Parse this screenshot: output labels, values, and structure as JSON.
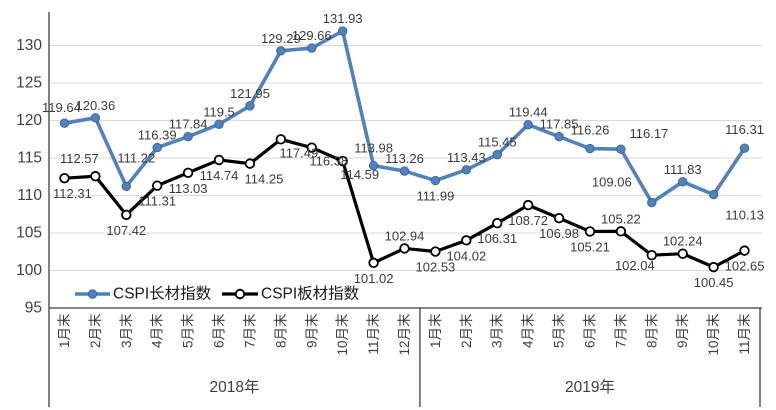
{
  "chart_data": {
    "type": "line",
    "title": "",
    "x_groups": [
      {
        "year": "2018年",
        "months": [
          "1月末",
          "2月末",
          "3月末",
          "4月末",
          "5月末",
          "6月末",
          "7月末",
          "8月末",
          "9月末",
          "10月末",
          "11月末",
          "12月末"
        ]
      },
      {
        "year": "2019年",
        "months": [
          "1月末",
          "2月末",
          "3月末",
          "4月末",
          "5月末",
          "6月末",
          "7月末",
          "8月末",
          "9月末",
          "10月末",
          "11月末"
        ]
      }
    ],
    "y_axis": {
      "ticks": [
        "95",
        "100",
        "105",
        "110",
        "115",
        "120",
        "125",
        "130"
      ],
      "min": 95,
      "max": 135,
      "grid": true
    },
    "legend": {
      "position": "bottom-left-inside",
      "items": [
        {
          "label": "CSPI长材指数",
          "marker": "filled-circle",
          "color": "#4F81BD"
        },
        {
          "label": "CSPI板材指数",
          "marker": "open-circle",
          "color": "#000000"
        }
      ]
    },
    "series": [
      {
        "name": "CSPI长材指数",
        "color": "#5282BC",
        "marker": "filled-circle",
        "values": [
          119.64,
          120.36,
          111.22,
          116.39,
          117.84,
          119.5,
          121.95,
          129.29,
          129.66,
          131.93,
          113.98,
          113.26,
          111.99,
          113.43,
          115.45,
          119.44,
          117.85,
          116.26,
          116.17,
          109.06,
          111.83,
          110.13,
          116.31
        ],
        "labels": [
          "119.64",
          "120.36",
          "111.22",
          "116.39",
          "117.84",
          "119.5",
          "121.95",
          "129.29",
          "129.66",
          "131.93",
          "113.98",
          "113.26",
          "111.99",
          "113.43",
          "115.45",
          "119.44",
          "117.85",
          "116.26",
          "116.17",
          "109.06",
          "111.83",
          "110.13",
          "116.31"
        ],
        "label_default_side": "above",
        "label_side_overrides": {
          "12": "below",
          "21": "below"
        },
        "label_offset_overrides": {
          "0": [
            -3,
            -3
          ],
          "2": [
            10,
            -16
          ],
          "10": [
            0,
            -5
          ],
          "17": [
            0,
            -6
          ],
          "18": [
            28,
            -3
          ],
          "19": [
            -40,
            -8
          ],
          "21": [
            31,
            5
          ],
          "22": [
            0,
            -6
          ]
        }
      },
      {
        "name": "CSPI板材指数",
        "color": "#000000",
        "marker": "open-circle",
        "values": [
          112.31,
          112.57,
          107.42,
          111.31,
          113.03,
          114.74,
          114.25,
          117.49,
          116.38,
          114.59,
          101.02,
          102.94,
          102.53,
          104.02,
          106.31,
          108.72,
          106.98,
          105.21,
          105.22,
          102.04,
          102.24,
          100.45,
          102.65
        ],
        "labels": [
          "112.31",
          "112.57",
          "107.42",
          "111.31",
          "113.03",
          "114.74",
          "114.25",
          "117.49",
          "116.38",
          "114.59",
          "101.02",
          "102.94",
          "102.53",
          "104.02",
          "106.31",
          "108.72",
          "106.98",
          "105.21",
          "105.22",
          "102.04",
          "102.24",
          "100.45",
          "102.65"
        ],
        "label_default_side": "below",
        "label_side_overrides": {
          "1": "above",
          "11": "above",
          "18": "above",
          "20": "above"
        },
        "label_offset_overrides": {
          "0": [
            8,
            0
          ],
          "1": [
            -16,
            -5
          ],
          "6": [
            14,
            0
          ],
          "7": [
            18,
            -2
          ],
          "8": [
            17,
            -2
          ],
          "9": [
            17,
            -2
          ],
          "19": [
            -17,
            -5
          ]
        }
      }
    ],
    "colors": {
      "grid": "#D9D9D9",
      "axis": "#3f3f3f",
      "tick_text": "#404040",
      "data_label_text": "#3b3b3b"
    }
  }
}
